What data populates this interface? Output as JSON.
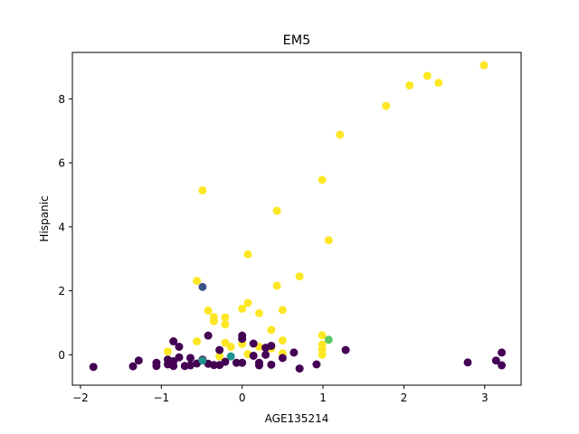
{
  "chart_data": {
    "type": "scatter",
    "title": "EM5",
    "xlabel": "AGE135214",
    "ylabel": "Hispanic",
    "xlim": [
      -2.1,
      3.45
    ],
    "ylim": [
      -0.95,
      9.45
    ],
    "xticks": [
      -2,
      -1,
      0,
      1,
      2,
      3
    ],
    "yticks": [
      0,
      2,
      4,
      6,
      8
    ],
    "grid": false,
    "legend": "none",
    "colormap": "viridis",
    "palette": {
      "purple": "#440154",
      "blue": "#3b528b",
      "teal": "#21918c",
      "green": "#5ec962",
      "yellow": "#fde725"
    },
    "points": [
      {
        "x": 2.99,
        "y": 9.05,
        "c": "yellow"
      },
      {
        "x": 2.29,
        "y": 8.72,
        "c": "yellow"
      },
      {
        "x": 2.43,
        "y": 8.5,
        "c": "yellow"
      },
      {
        "x": 2.07,
        "y": 8.42,
        "c": "yellow"
      },
      {
        "x": 1.78,
        "y": 7.78,
        "c": "yellow"
      },
      {
        "x": 1.21,
        "y": 6.88,
        "c": "yellow"
      },
      {
        "x": 0.99,
        "y": 5.47,
        "c": "yellow"
      },
      {
        "x": -0.49,
        "y": 5.14,
        "c": "yellow"
      },
      {
        "x": 0.43,
        "y": 4.5,
        "c": "yellow"
      },
      {
        "x": 1.07,
        "y": 3.58,
        "c": "yellow"
      },
      {
        "x": 0.07,
        "y": 3.14,
        "c": "yellow"
      },
      {
        "x": 0.71,
        "y": 2.45,
        "c": "yellow"
      },
      {
        "x": -0.56,
        "y": 2.31,
        "c": "yellow"
      },
      {
        "x": 0.43,
        "y": 2.16,
        "c": "yellow"
      },
      {
        "x": 0.07,
        "y": 1.62,
        "c": "yellow"
      },
      {
        "x": 0.0,
        "y": 1.44,
        "c": "yellow"
      },
      {
        "x": 0.5,
        "y": 1.4,
        "c": "yellow"
      },
      {
        "x": -0.42,
        "y": 1.38,
        "c": "yellow"
      },
      {
        "x": 0.21,
        "y": 1.3,
        "c": "yellow"
      },
      {
        "x": -0.35,
        "y": 1.18,
        "c": "yellow"
      },
      {
        "x": -0.21,
        "y": 1.17,
        "c": "yellow"
      },
      {
        "x": -0.35,
        "y": 1.05,
        "c": "yellow"
      },
      {
        "x": -0.21,
        "y": 0.95,
        "c": "yellow"
      },
      {
        "x": 0.36,
        "y": 0.78,
        "c": "yellow"
      },
      {
        "x": 0.99,
        "y": 0.61,
        "c": "yellow"
      },
      {
        "x": 0.5,
        "y": 0.45,
        "c": "yellow"
      },
      {
        "x": -0.56,
        "y": 0.42,
        "c": "yellow"
      },
      {
        "x": -0.21,
        "y": 0.38,
        "c": "yellow"
      },
      {
        "x": 0.0,
        "y": 0.34,
        "c": "yellow"
      },
      {
        "x": 0.99,
        "y": 0.32,
        "c": "yellow"
      },
      {
        "x": -0.14,
        "y": 0.25,
        "c": "yellow"
      },
      {
        "x": 0.21,
        "y": 0.25,
        "c": "yellow"
      },
      {
        "x": 0.36,
        "y": 0.2,
        "c": "yellow"
      },
      {
        "x": 0.99,
        "y": 0.17,
        "c": "yellow"
      },
      {
        "x": -0.92,
        "y": 0.1,
        "c": "yellow"
      },
      {
        "x": 0.07,
        "y": 0.02,
        "c": "yellow"
      },
      {
        "x": 0.5,
        "y": 0.05,
        "c": "yellow"
      },
      {
        "x": 0.99,
        "y": 0.0,
        "c": "yellow"
      },
      {
        "x": -0.28,
        "y": -0.05,
        "c": "yellow"
      },
      {
        "x": -0.42,
        "y": 0.6,
        "c": "purple"
      },
      {
        "x": 0.0,
        "y": 0.6,
        "c": "purple"
      },
      {
        "x": 0.0,
        "y": 0.5,
        "c": "purple"
      },
      {
        "x": -0.85,
        "y": 0.42,
        "c": "purple"
      },
      {
        "x": 0.14,
        "y": 0.35,
        "c": "purple"
      },
      {
        "x": 0.36,
        "y": 0.28,
        "c": "purple"
      },
      {
        "x": -0.78,
        "y": 0.25,
        "c": "purple"
      },
      {
        "x": 0.29,
        "y": 0.22,
        "c": "purple"
      },
      {
        "x": 1.28,
        "y": 0.15,
        "c": "purple"
      },
      {
        "x": -0.28,
        "y": 0.15,
        "c": "purple"
      },
      {
        "x": 3.21,
        "y": 0.07,
        "c": "purple"
      },
      {
        "x": 0.64,
        "y": 0.07,
        "c": "purple"
      },
      {
        "x": 0.29,
        "y": 0.0,
        "c": "purple"
      },
      {
        "x": 0.14,
        "y": -0.03,
        "c": "purple"
      },
      {
        "x": -0.78,
        "y": -0.08,
        "c": "purple"
      },
      {
        "x": -0.64,
        "y": -0.1,
        "c": "purple"
      },
      {
        "x": 0.5,
        "y": -0.1,
        "c": "purple"
      },
      {
        "x": -0.92,
        "y": -0.15,
        "c": "purple"
      },
      {
        "x": -1.28,
        "y": -0.18,
        "c": "purple"
      },
      {
        "x": 3.14,
        "y": -0.18,
        "c": "purple"
      },
      {
        "x": -0.49,
        "y": -0.15,
        "c": "purple"
      },
      {
        "x": -0.85,
        "y": -0.2,
        "c": "purple"
      },
      {
        "x": -0.21,
        "y": -0.22,
        "c": "purple"
      },
      {
        "x": 2.79,
        "y": -0.24,
        "c": "purple"
      },
      {
        "x": -1.06,
        "y": -0.25,
        "c": "purple"
      },
      {
        "x": -0.07,
        "y": -0.25,
        "c": "purple"
      },
      {
        "x": 0.0,
        "y": -0.25,
        "c": "purple"
      },
      {
        "x": 0.21,
        "y": -0.25,
        "c": "purple"
      },
      {
        "x": -0.56,
        "y": -0.27,
        "c": "purple"
      },
      {
        "x": -0.42,
        "y": -0.28,
        "c": "purple"
      },
      {
        "x": -0.92,
        "y": -0.3,
        "c": "purple"
      },
      {
        "x": 0.92,
        "y": -0.3,
        "c": "purple"
      },
      {
        "x": 0.36,
        "y": -0.31,
        "c": "purple"
      },
      {
        "x": -0.35,
        "y": -0.32,
        "c": "purple"
      },
      {
        "x": -0.28,
        "y": -0.32,
        "c": "purple"
      },
      {
        "x": -0.64,
        "y": -0.33,
        "c": "purple"
      },
      {
        "x": 0.21,
        "y": -0.33,
        "c": "purple"
      },
      {
        "x": 3.21,
        "y": -0.33,
        "c": "purple"
      },
      {
        "x": -1.06,
        "y": -0.35,
        "c": "purple"
      },
      {
        "x": -0.85,
        "y": -0.35,
        "c": "purple"
      },
      {
        "x": -0.71,
        "y": -0.35,
        "c": "purple"
      },
      {
        "x": -1.35,
        "y": -0.36,
        "c": "purple"
      },
      {
        "x": -1.84,
        "y": -0.38,
        "c": "purple"
      },
      {
        "x": 0.71,
        "y": -0.43,
        "c": "purple"
      },
      {
        "x": -0.49,
        "y": 2.12,
        "c": "blue"
      },
      {
        "x": -0.14,
        "y": -0.05,
        "c": "teal"
      },
      {
        "x": -0.49,
        "y": -0.18,
        "c": "teal"
      },
      {
        "x": 1.07,
        "y": 0.47,
        "c": "green"
      }
    ]
  }
}
